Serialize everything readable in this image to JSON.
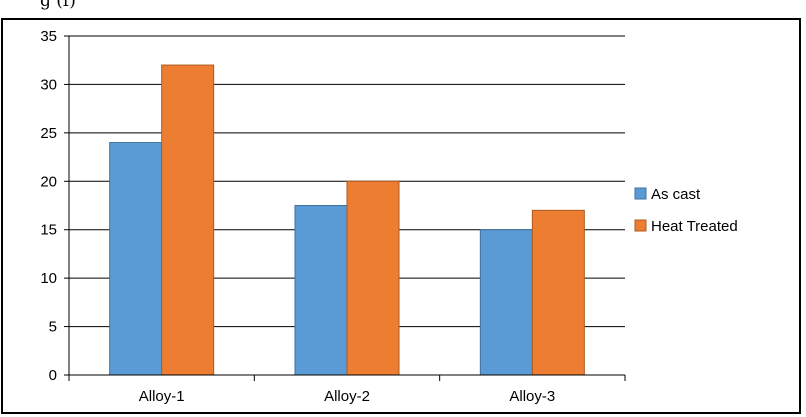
{
  "caption": "g                                                                      (f)",
  "colors": {
    "as_cast": "#5b9bd5",
    "as_cast_edge": "#41719c",
    "heat_treated": "#ed7d31",
    "heat_treated_edge": "#ae5a21",
    "grid": "#000000"
  },
  "chart_data": {
    "type": "bar",
    "categories": [
      "Alloy-1",
      "Alloy-2",
      "Alloy-3"
    ],
    "series": [
      {
        "name": "As cast",
        "values": [
          24,
          17.5,
          15
        ]
      },
      {
        "name": "Heat Treated",
        "values": [
          32,
          20,
          17
        ]
      }
    ],
    "title": "",
    "xlabel": "",
    "ylabel": "",
    "ylim": [
      0,
      35
    ],
    "yticks": [
      0,
      5,
      10,
      15,
      20,
      25,
      30,
      35
    ],
    "grid": true,
    "legend": "right"
  }
}
